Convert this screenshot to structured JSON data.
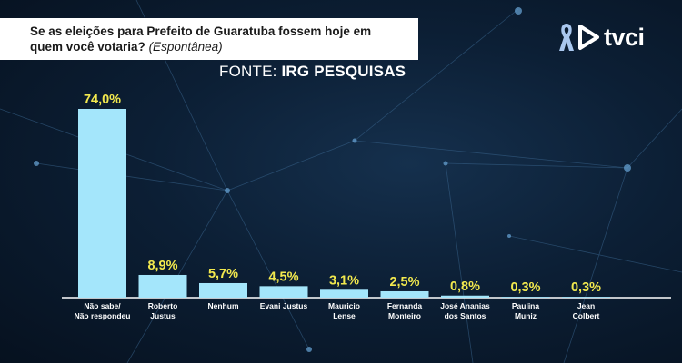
{
  "header": {
    "question_line1": "Se as eleições para Prefeito de Guaratuba fossem hoje em",
    "question_line2": "quem você votaria?",
    "question_note": "(Espontânea)",
    "source_prefix": "FONTE: ",
    "source_name": "IRG PESQUISAS"
  },
  "logo": {
    "text": "tvci",
    "icons": [
      "awareness-ribbon-icon",
      "play-icon"
    ]
  },
  "colors": {
    "bar": "#a4e6fb",
    "value_label": "#f2e94e",
    "background": "#0c1f35"
  },
  "chart_data": {
    "type": "bar",
    "title": "Se as eleições para Prefeito de Guaratuba fossem hoje em quem você votaria? (Espontânea)",
    "categories": [
      [
        "Não sabe/",
        "Não respondeu"
      ],
      [
        "Roberto",
        "Justus"
      ],
      [
        "Nenhum"
      ],
      [
        "Evani Justus"
      ],
      [
        "Mauricio",
        "Lense"
      ],
      [
        "Fernanda",
        "Monteiro"
      ],
      [
        "José Ananias",
        "dos Santos"
      ],
      [
        "Paulina",
        "Muniz"
      ],
      [
        "Jean",
        "Colbert"
      ]
    ],
    "values": [
      74.0,
      8.9,
      5.7,
      4.5,
      3.1,
      2.5,
      0.8,
      0.3,
      0.3
    ],
    "value_labels": [
      "74,0%",
      "8,9%",
      "5,7%",
      "4,5%",
      "3,1%",
      "2,5%",
      "0,8%",
      "0,3%",
      "0,3%"
    ],
    "ylim": [
      0,
      74
    ],
    "grid": false,
    "xlabel": "",
    "ylabel": ""
  }
}
